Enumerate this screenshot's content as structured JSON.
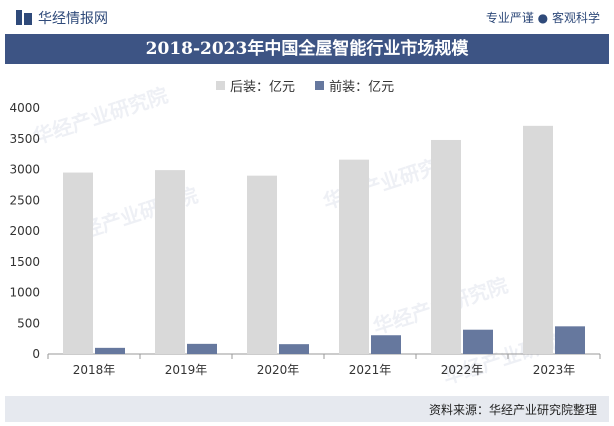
{
  "header": {
    "brand": "华经情报网",
    "tagline_left": "专业严谨",
    "tagline_sep": "●",
    "tagline_right": "客观科学"
  },
  "watermark": "华经产业研究院",
  "footer": {
    "source": "资料来源：华经产业研究院整理"
  },
  "colors": {
    "front": "#d9d9d9",
    "rear": "#66789e",
    "title_bg": "#3d5484",
    "footer_bg": "#e6e9ef"
  },
  "chart_data": {
    "type": "bar",
    "title": "2018-2023年中国全屋智能行业市场规模",
    "categories": [
      "2018年",
      "2019年",
      "2020年",
      "2021年",
      "2022年",
      "2023年"
    ],
    "series": [
      {
        "name": "后装：亿元",
        "values": [
          2950,
          2990,
          2900,
          3160,
          3480,
          3710
        ]
      },
      {
        "name": "前装：亿元",
        "values": [
          100,
          165,
          160,
          305,
          395,
          450
        ]
      }
    ],
    "yticks": [
      0,
      500,
      1000,
      1500,
      2000,
      2500,
      3000,
      3500,
      4000
    ],
    "ylim": [
      0,
      4000
    ],
    "xlabel": "",
    "ylabel": ""
  }
}
